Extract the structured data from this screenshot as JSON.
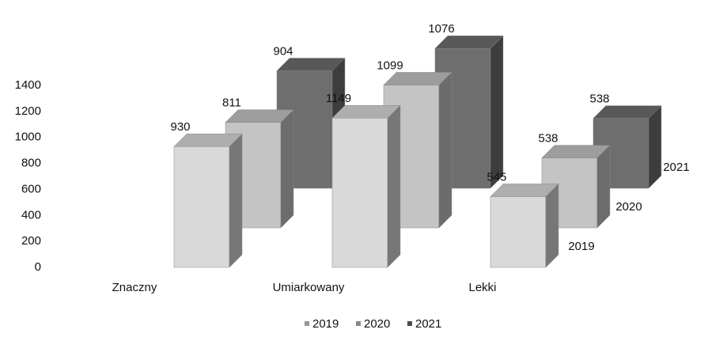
{
  "chart_data": {
    "type": "bar3d",
    "categories": [
      "Znaczny",
      "Umiarkowany",
      "Lekki"
    ],
    "series": [
      {
        "name": "2019",
        "color": "#d9d9d9",
        "values": [
          930,
          1149,
          545
        ]
      },
      {
        "name": "2020",
        "color": "#c4c4c4",
        "values": [
          811,
          1099,
          538
        ]
      },
      {
        "name": "2021",
        "color": "#6e6e6e",
        "values": [
          904,
          1076,
          538
        ]
      }
    ],
    "ylim": [
      0,
      1400
    ],
    "yticks": [
      0,
      200,
      400,
      600,
      800,
      1000,
      1200,
      1400
    ],
    "legend": "bottom"
  }
}
